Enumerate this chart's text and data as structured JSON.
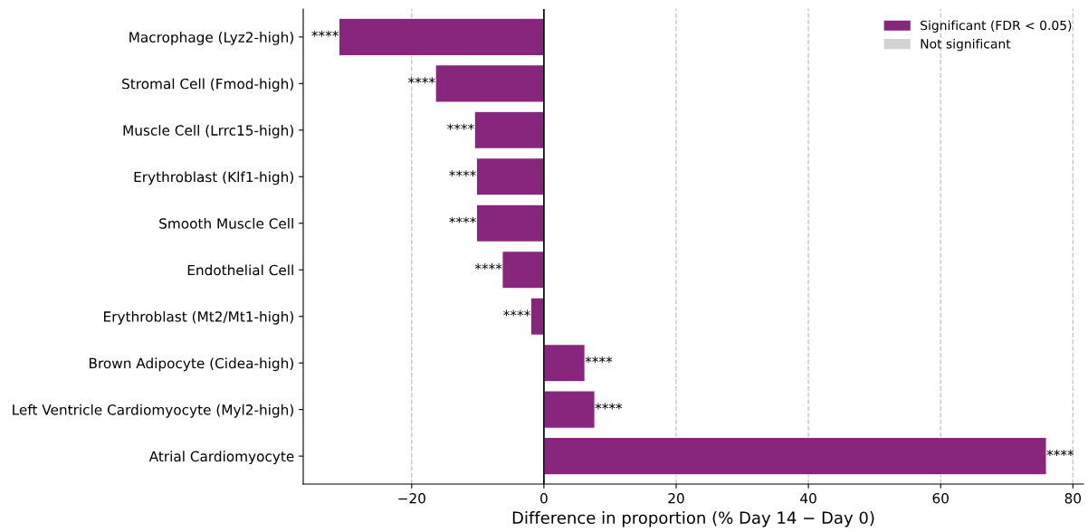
{
  "chart_data": {
    "type": "bar",
    "orientation": "horizontal",
    "xlabel": "Difference in proportion (% Day 14 − Day 0)",
    "categories": [
      "Macrophage (Lyz2-high)",
      "Stromal Cell (Fmod-high)",
      "Muscle Cell (Lrrc15-high)",
      "Erythroblast (Klf1-high)",
      "Smooth Muscle Cell",
      "Endothelial Cell",
      "Erythroblast (Mt2/Mt1-high)",
      "Brown Adipocyte (Cidea-high)",
      "Left Ventricle Cardiomyocyte (Myl2-high)",
      "Atrial Cardiomyocyte"
    ],
    "series": [
      {
        "name": "Significant (FDR < 0.05)",
        "color": "#88267d",
        "values": [
          -31.0,
          -16.4,
          -10.5,
          -10.2,
          -10.2,
          -6.3,
          -2.0,
          6.2,
          7.7,
          76.0
        ],
        "value_labels": [
          "****",
          "****",
          "****",
          "****",
          "****",
          "****",
          "****",
          "****",
          "****",
          "****"
        ]
      },
      {
        "name": "Not significant",
        "color": "#d3d3d3",
        "values": [
          null,
          null,
          null,
          null,
          null,
          null,
          null,
          null,
          null,
          null
        ]
      }
    ],
    "xlim": [
      -36.4,
      81.6
    ],
    "xticks": [
      {
        "value": -20,
        "label": "−20"
      },
      0,
      20,
      40,
      60,
      80
    ],
    "ref_lines": [
      {
        "axis": "x",
        "value": 0,
        "color": "#000000",
        "line_style": "solid"
      }
    ],
    "grid": "x",
    "legend": "top right"
  }
}
